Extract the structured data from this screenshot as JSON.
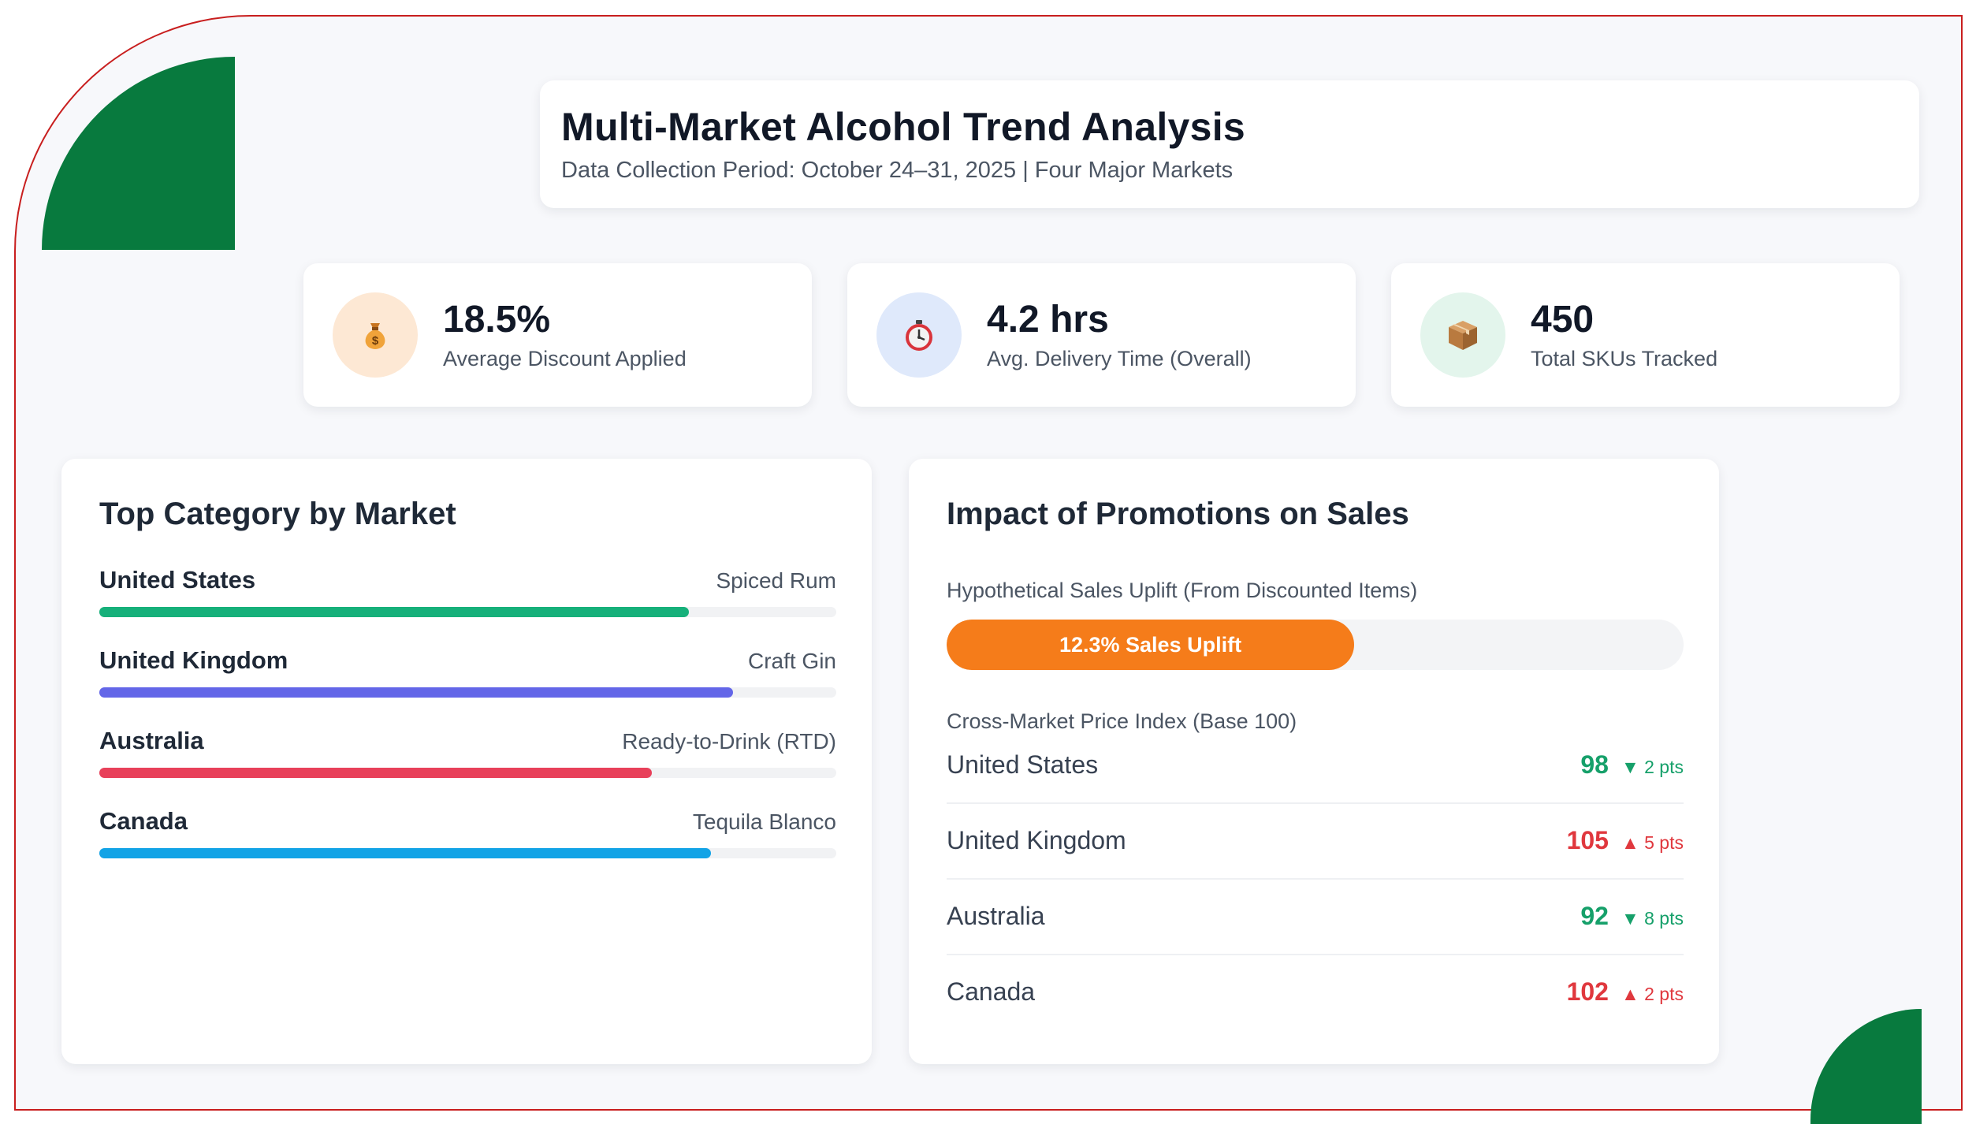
{
  "header": {
    "title": "Multi-Market Alcohol Trend Analysis",
    "subtitle": "Data Collection Period: October 24–31, 2025 | Four Major Markets"
  },
  "kpis": [
    {
      "icon": "money-bag-icon",
      "value": "18.5%",
      "label": "Average Discount Applied",
      "icon_bg": "#fde8d4"
    },
    {
      "icon": "stopwatch-icon",
      "value": "4.2 hrs",
      "label": "Avg. Delivery Time (Overall)",
      "icon_bg": "#dfe9fb"
    },
    {
      "icon": "package-icon",
      "value": "450",
      "label": "Total SKUs Tracked",
      "icon_bg": "#e3f5ec"
    }
  ],
  "top_category": {
    "title": "Top Category by Market",
    "markets": [
      {
        "name": "United States",
        "category": "Spiced Rum",
        "share": 0.8,
        "color": "#16b07a"
      },
      {
        "name": "United Kingdom",
        "category": "Craft Gin",
        "share": 0.86,
        "color": "#6366e8"
      },
      {
        "name": "Australia",
        "category": "Ready-to-Drink (RTD)",
        "share": 0.75,
        "color": "#e8405a"
      },
      {
        "name": "Canada",
        "category": "Tequila Blanco",
        "share": 0.83,
        "color": "#12a3e6"
      }
    ]
  },
  "promotions": {
    "title": "Impact of Promotions on Sales",
    "uplift_label": "Hypothetical Sales Uplift (From Discounted Items)",
    "uplift_text": "12.3% Sales Uplift",
    "uplift_fill": 0.553,
    "uplift_color": "#f57c1a",
    "price_index_label": "Cross-Market Price Index (Base 100)",
    "price_index": [
      {
        "market": "United States",
        "value": "98",
        "delta": "▼ 2 pts",
        "direction": "down"
      },
      {
        "market": "United Kingdom",
        "value": "105",
        "delta": "▲ 5 pts",
        "direction": "up"
      },
      {
        "market": "Australia",
        "value": "92",
        "delta": "▼ 8 pts",
        "direction": "down"
      },
      {
        "market": "Canada",
        "value": "102",
        "delta": "▲ 2 pts",
        "direction": "up"
      }
    ]
  },
  "colors": {
    "brand_green": "#087a3e",
    "frame_red": "#c81e1e",
    "up": "#e0383e",
    "down": "#16a06a"
  }
}
